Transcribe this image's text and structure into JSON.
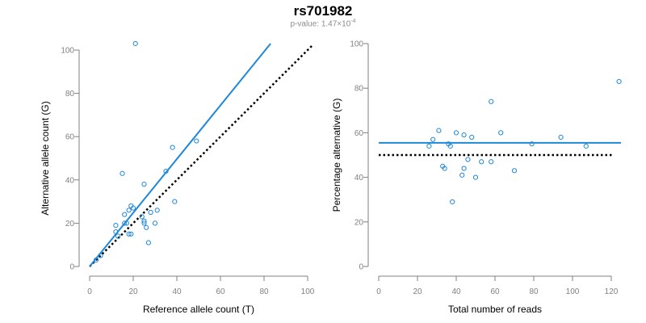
{
  "header": {
    "title": "rs701982",
    "subtitle_prefix": "p-value: 1.47×10",
    "subtitle_exp": "-4"
  },
  "chart_data": [
    {
      "type": "scatter",
      "xlabel": "Reference allele count (T)",
      "ylabel": "Alternative allele count (G)",
      "xlim": [
        0,
        100
      ],
      "ylim": [
        0,
        100
      ],
      "xticks": [
        0,
        20,
        40,
        60,
        80,
        100
      ],
      "yticks": [
        0,
        20,
        40,
        60,
        80,
        100
      ],
      "points_color": "#1f88d9",
      "points": [
        [
          21,
          103
        ],
        [
          15,
          43
        ],
        [
          25,
          38
        ],
        [
          38,
          55
        ],
        [
          49,
          58
        ],
        [
          35,
          44
        ],
        [
          39,
          30
        ],
        [
          12,
          19
        ],
        [
          12,
          16
        ],
        [
          13,
          14
        ],
        [
          16,
          24
        ],
        [
          16,
          20
        ],
        [
          17,
          20
        ],
        [
          18,
          26
        ],
        [
          19,
          28
        ],
        [
          20,
          27
        ],
        [
          18,
          15
        ],
        [
          19,
          15
        ],
        [
          24,
          23
        ],
        [
          25,
          21
        ],
        [
          25,
          20
        ],
        [
          26,
          18
        ],
        [
          27,
          11
        ],
        [
          28,
          25
        ],
        [
          30,
          20
        ],
        [
          31,
          26
        ],
        [
          5,
          5
        ],
        [
          3,
          3
        ]
      ],
      "fit_line": {
        "x": [
          0,
          83
        ],
        "y": [
          0,
          103
        ],
        "color": "#1f88d9"
      },
      "ref_line": {
        "x": [
          0,
          102
        ],
        "y": [
          0,
          102
        ],
        "color": "#000000",
        "style": "dotted"
      }
    },
    {
      "type": "scatter",
      "xlabel": "Total number of reads",
      "ylabel": "Percentage alternative (G)",
      "xlim": [
        0,
        125
      ],
      "ylim": [
        0,
        100
      ],
      "xticks": [
        0,
        20,
        40,
        60,
        80,
        100,
        120
      ],
      "yticks": [
        0,
        20,
        40,
        60,
        80,
        100
      ],
      "points_color": "#1f88d9",
      "points": [
        [
          124,
          83
        ],
        [
          58,
          74
        ],
        [
          31,
          61
        ],
        [
          40,
          60
        ],
        [
          44,
          59
        ],
        [
          48,
          58
        ],
        [
          63,
          60
        ],
        [
          28,
          57
        ],
        [
          26,
          54
        ],
        [
          36,
          55
        ],
        [
          37,
          54
        ],
        [
          79,
          55
        ],
        [
          94,
          58
        ],
        [
          107,
          54
        ],
        [
          33,
          45
        ],
        [
          34,
          44
        ],
        [
          44,
          44
        ],
        [
          43,
          41
        ],
        [
          46,
          48
        ],
        [
          53,
          47
        ],
        [
          58,
          47
        ],
        [
          50,
          40
        ],
        [
          70,
          43
        ],
        [
          38,
          29
        ]
      ],
      "fit_line": {
        "x": [
          0,
          125
        ],
        "y": [
          55.5,
          55.5
        ],
        "color": "#1f88d9"
      },
      "ref_line": {
        "x": [
          0,
          121
        ],
        "y": [
          50,
          50
        ],
        "color": "#000000",
        "style": "dotted"
      }
    }
  ]
}
